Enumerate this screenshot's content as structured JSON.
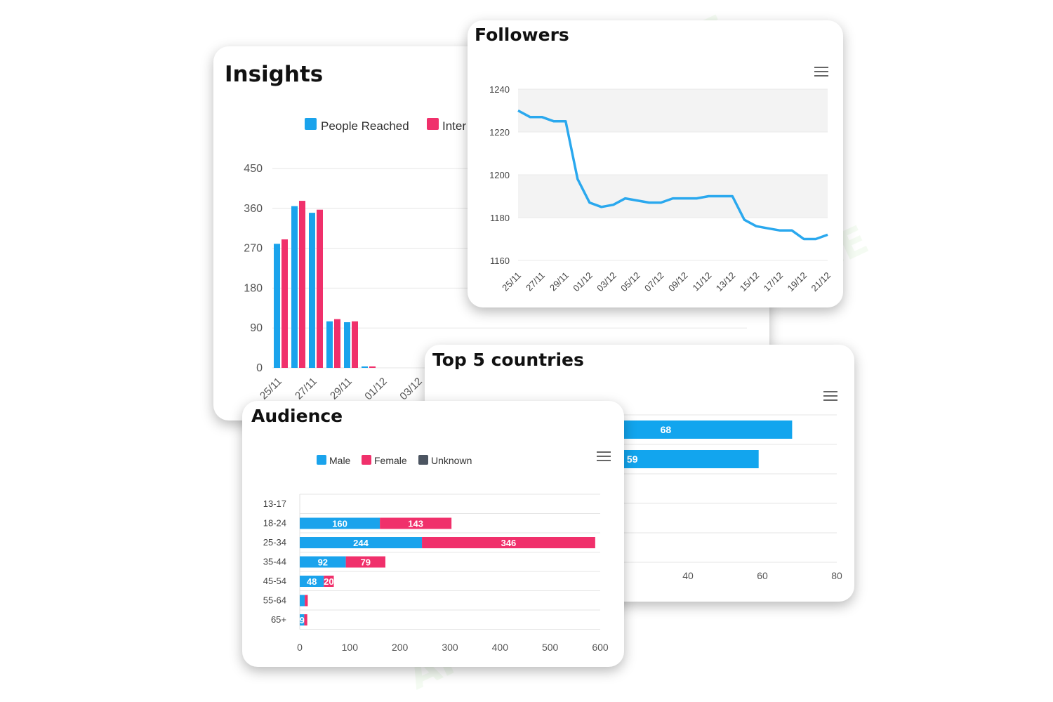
{
  "watermark": "AI TALENT SPACE",
  "colors": {
    "blue": "#1aa3ec",
    "pink": "#f0306b",
    "gray": "#4c5561",
    "line": "#2aa8ee",
    "bar_blue": "#12a5ee"
  },
  "insights": {
    "title": "Insights",
    "legend": [
      "People Reached",
      "Inter"
    ],
    "chart_data": {
      "type": "bar",
      "title": "Insights",
      "series": [
        {
          "name": "People Reached",
          "values": [
            280,
            365,
            350,
            105,
            103,
            2,
            0,
            0
          ]
        },
        {
          "name": "Inter",
          "values": [
            290,
            377,
            357,
            110,
            105,
            2,
            0,
            0
          ]
        }
      ],
      "categories": [
        "25/11",
        "26/11",
        "27/11",
        "28/11",
        "29/11",
        "30/11",
        "01/12",
        "02/12"
      ],
      "tick_labels": [
        "25/11",
        "27/11",
        "29/11",
        "01/12",
        "03/12"
      ],
      "yticks": [
        0,
        90,
        180,
        270,
        360,
        450
      ],
      "ylim": [
        0,
        450
      ]
    }
  },
  "followers": {
    "title": "Followers",
    "chart_data": {
      "type": "line",
      "title": "Followers",
      "x": [
        "25/11",
        "26/11",
        "27/11",
        "28/11",
        "29/11",
        "30/11",
        "01/12",
        "02/12",
        "03/12",
        "04/12",
        "05/12",
        "06/12",
        "07/12",
        "08/12",
        "09/12",
        "10/12",
        "11/12",
        "12/12",
        "13/12",
        "14/12",
        "15/12",
        "16/12",
        "17/12",
        "18/12",
        "19/12",
        "20/12",
        "21/12"
      ],
      "values": [
        1230,
        1227,
        1227,
        1225,
        1225,
        1198,
        1187,
        1185,
        1186,
        1189,
        1188,
        1187,
        1187,
        1189,
        1189,
        1189,
        1190,
        1190,
        1190,
        1179,
        1176,
        1175,
        1174,
        1174,
        1170,
        1170,
        1172
      ],
      "tick_labels": [
        "25/11",
        "27/11",
        "29/11",
        "01/12",
        "03/12",
        "05/12",
        "07/12",
        "09/12",
        "11/12",
        "13/12",
        "15/12",
        "17/12",
        "19/12",
        "21/12"
      ],
      "yticks": [
        1160,
        1180,
        1200,
        1220,
        1240
      ],
      "ylim": [
        1160,
        1240
      ]
    }
  },
  "countries": {
    "title": "Top 5 countries",
    "chart_data": {
      "type": "bar",
      "title": "Top 5 countries",
      "values": [
        68,
        59
      ],
      "xticks": [
        40,
        60,
        80
      ],
      "xlim": [
        0,
        80
      ]
    }
  },
  "audience": {
    "title": "Audience",
    "legend": [
      "Male",
      "Female",
      "Unknown"
    ],
    "chart_data": {
      "type": "bar",
      "title": "Audience",
      "categories": [
        "13-17",
        "18-24",
        "25-34",
        "35-44",
        "45-54",
        "55-64",
        "65+"
      ],
      "series": [
        {
          "name": "Male",
          "values": [
            0,
            160,
            244,
            92,
            48,
            10,
            9
          ]
        },
        {
          "name": "Female",
          "values": [
            0,
            143,
            346,
            79,
            20,
            6,
            6
          ]
        },
        {
          "name": "Unknown",
          "values": [
            0,
            0,
            0,
            0,
            0,
            0,
            0
          ]
        }
      ],
      "data_labels": {
        "Male": [
          "",
          "160",
          "244",
          "92",
          "48",
          "",
          "9"
        ],
        "Female": [
          "",
          "143",
          "346",
          "79",
          "20",
          "",
          ""
        ]
      },
      "xticks": [
        0,
        100,
        200,
        300,
        400,
        500,
        600
      ],
      "xlim": [
        0,
        600
      ]
    }
  }
}
